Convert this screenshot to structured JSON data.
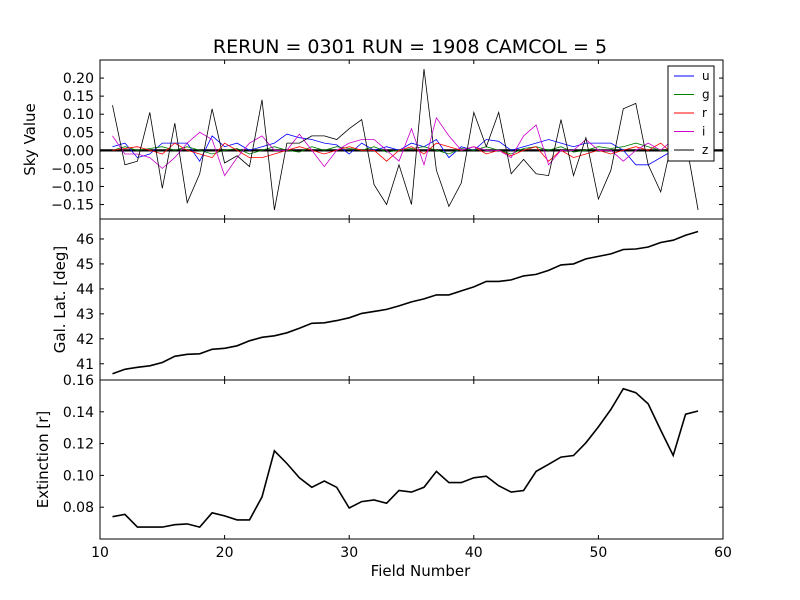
{
  "figure_title": "RERUN = 0301 RUN = 1908 CAMCOL = 5",
  "chart_data": [
    {
      "type": "line",
      "title": "RERUN = 0301 RUN = 1908 CAMCOL = 5",
      "xlabel": "",
      "ylabel": "Sky Value",
      "xlim": [
        10,
        60
      ],
      "ylim": [
        -0.19,
        0.25
      ],
      "yticks": [
        "0.20",
        "0.15",
        "0.10",
        "0.05",
        "0.00",
        "−0.05",
        "−0.10",
        "−0.15"
      ],
      "ytick_values": [
        0.2,
        0.15,
        0.1,
        0.05,
        0.0,
        -0.05,
        -0.1,
        -0.15
      ],
      "legend": {
        "placement": "top-right",
        "entries": [
          "u",
          "g",
          "r",
          "i",
          "z"
        ]
      },
      "x": [
        11,
        12,
        13,
        14,
        15,
        16,
        17,
        18,
        19,
        20,
        21,
        22,
        23,
        24,
        25,
        26,
        27,
        28,
        29,
        30,
        31,
        32,
        33,
        34,
        35,
        36,
        37,
        38,
        39,
        40,
        41,
        42,
        43,
        44,
        45,
        46,
        47,
        48,
        49,
        50,
        51,
        52,
        53,
        54,
        55,
        56,
        57,
        58
      ],
      "series": [
        {
          "name": "u",
          "color": "#0000ff",
          "values": [
            0.01,
            0.02,
            -0.02,
            -0.01,
            0.02,
            0.02,
            0.02,
            -0.03,
            0.04,
            0.01,
            0.02,
            0.0,
            0.01,
            0.02,
            0.045,
            0.035,
            0.03,
            0.02,
            0.015,
            -0.01,
            0.02,
            0.0,
            0.01,
            0.0,
            0.02,
            0.01,
            0.03,
            -0.02,
            0.01,
            0.0,
            0.03,
            0.025,
            0.0,
            0.01,
            0.02,
            0.03,
            0.02,
            0.01,
            0.02,
            0.02,
            0.02,
            0.0,
            -0.04,
            -0.04,
            -0.02,
            0.0,
            0.01,
            -0.01
          ]
        },
        {
          "name": "g",
          "color": "#008000",
          "values": [
            0.0,
            0.01,
            0.0,
            0.005,
            0.01,
            0.0,
            0.01,
            0.0,
            -0.01,
            0.0,
            0.005,
            -0.01,
            0.0,
            0.01,
            0.0,
            -0.005,
            0.01,
            0.0,
            0.01,
            0.005,
            0.0,
            0.01,
            -0.005,
            0.0,
            0.005,
            0.01,
            0.0,
            -0.01,
            0.005,
            0.0,
            0.01,
            0.0,
            -0.01,
            0.005,
            0.01,
            0.0,
            0.01,
            -0.005,
            0.0,
            0.01,
            0.005,
            0.01,
            0.02,
            0.01,
            0.0,
            -0.005,
            0.01,
            0.0
          ]
        },
        {
          "name": "r",
          "color": "#ff0000",
          "values": [
            0.0,
            0.005,
            0.01,
            0.0,
            -0.01,
            0.02,
            0.0,
            -0.01,
            -0.02,
            0.02,
            0.0,
            -0.02,
            -0.02,
            -0.01,
            0.0,
            0.01,
            0.0,
            -0.01,
            0.0,
            0.01,
            0.0,
            0.0,
            -0.03,
            0.0,
            0.01,
            -0.01,
            0.02,
            0.01,
            0.0,
            0.01,
            -0.01,
            0.0,
            -0.015,
            0.0,
            0.01,
            -0.03,
            0.0,
            -0.02,
            -0.01,
            0.0,
            -0.01,
            0.0,
            0.01,
            0.0,
            0.02,
            -0.01,
            0.0,
            0.0
          ]
        },
        {
          "name": "i",
          "color": "#cc00cc",
          "values": [
            0.04,
            -0.01,
            -0.01,
            -0.02,
            -0.05,
            -0.02,
            0.02,
            0.05,
            0.03,
            -0.07,
            -0.02,
            0.02,
            0.04,
            0.0,
            0.0,
            0.045,
            0.0,
            -0.045,
            0.0,
            0.02,
            0.03,
            0.03,
            0.0,
            -0.03,
            0.06,
            -0.04,
            0.09,
            0.04,
            0.0,
            0.01,
            0.0,
            0.0,
            -0.02,
            0.04,
            0.07,
            -0.04,
            0.0,
            0.0,
            0.03,
            0.0,
            0.0,
            -0.03,
            0.0,
            0.02,
            0.0,
            0.03,
            0.01,
            0.03
          ]
        },
        {
          "name": "z",
          "color": "#000000",
          "values": [
            0.125,
            -0.04,
            -0.03,
            0.105,
            -0.105,
            0.075,
            -0.145,
            -0.065,
            0.115,
            -0.035,
            -0.015,
            -0.045,
            0.14,
            -0.165,
            0.02,
            0.02,
            0.04,
            0.04,
            0.03,
            0.06,
            0.085,
            -0.095,
            -0.15,
            -0.04,
            -0.15,
            0.225,
            -0.055,
            -0.155,
            -0.09,
            0.105,
            0.01,
            0.105,
            -0.065,
            -0.025,
            -0.065,
            -0.07,
            0.085,
            -0.07,
            0.035,
            -0.135,
            -0.055,
            0.115,
            0.13,
            -0.04,
            -0.115,
            0.04,
            0.03,
            -0.165
          ]
        }
      ]
    },
    {
      "type": "line",
      "title": "",
      "xlabel": "",
      "ylabel": "Gal. Lat. [deg]",
      "xlim": [
        10,
        60
      ],
      "ylim": [
        40.35,
        46.8
      ],
      "yticks": [
        "46",
        "45",
        "44",
        "43",
        "42",
        "41"
      ],
      "ytick_values": [
        46,
        45,
        44,
        43,
        42,
        41
      ],
      "x": [
        11,
        12,
        13,
        14,
        15,
        16,
        17,
        18,
        19,
        20,
        21,
        22,
        23,
        24,
        25,
        26,
        27,
        28,
        29,
        30,
        31,
        32,
        33,
        34,
        35,
        36,
        37,
        38,
        39,
        40,
        41,
        42,
        43,
        44,
        45,
        46,
        47,
        48,
        49,
        50,
        51,
        52,
        53,
        54,
        55,
        56,
        57,
        58
      ],
      "series": [
        {
          "name": "Gal. Lat.",
          "color": "#000000",
          "values": [
            40.6,
            40.78,
            40.86,
            40.92,
            41.05,
            41.3,
            41.38,
            41.4,
            41.58,
            41.62,
            41.72,
            41.92,
            42.06,
            42.12,
            42.24,
            42.42,
            42.62,
            42.64,
            42.73,
            42.84,
            43.02,
            43.1,
            43.18,
            43.32,
            43.48,
            43.6,
            43.76,
            43.76,
            43.92,
            44.08,
            44.3,
            44.3,
            44.36,
            44.52,
            44.58,
            44.74,
            44.96,
            45.0,
            45.2,
            45.3,
            45.4,
            45.58,
            45.6,
            45.68,
            45.86,
            45.95,
            46.15,
            46.3
          ]
        }
      ]
    },
    {
      "type": "line",
      "title": "",
      "xlabel": "Field Number",
      "ylabel": "Extinction [r]",
      "xlim": [
        10,
        60
      ],
      "xticks": [
        "10",
        "20",
        "30",
        "40",
        "50",
        "60"
      ],
      "xtick_values": [
        10,
        20,
        30,
        40,
        50,
        60
      ],
      "ylim": [
        0.06,
        0.16
      ],
      "yticks": [
        "0.16",
        "0.14",
        "0.12",
        "0.10",
        "0.08"
      ],
      "ytick_values": [
        0.16,
        0.14,
        0.12,
        0.1,
        0.08
      ],
      "x": [
        11,
        12,
        13,
        14,
        15,
        16,
        17,
        18,
        19,
        20,
        21,
        22,
        23,
        24,
        25,
        26,
        27,
        28,
        29,
        30,
        31,
        32,
        33,
        34,
        35,
        36,
        37,
        38,
        39,
        40,
        41,
        42,
        43,
        44,
        45,
        46,
        47,
        48,
        49,
        50,
        51,
        52,
        53,
        54,
        55,
        56,
        57,
        58
      ],
      "series": [
        {
          "name": "Extinction",
          "color": "#000000",
          "values": [
            0.074,
            0.0755,
            0.0675,
            0.0675,
            0.0675,
            0.069,
            0.0695,
            0.0675,
            0.0765,
            0.0745,
            0.072,
            0.072,
            0.0865,
            0.1155,
            0.1075,
            0.0985,
            0.0925,
            0.0965,
            0.0925,
            0.0795,
            0.0835,
            0.0845,
            0.0825,
            0.0905,
            0.0895,
            0.0925,
            0.1025,
            0.0955,
            0.0955,
            0.0985,
            0.0995,
            0.0935,
            0.0895,
            0.0905,
            0.1025,
            0.107,
            0.1115,
            0.1125,
            0.1205,
            0.1305,
            0.1415,
            0.1545,
            0.152,
            0.145,
            0.1285,
            0.1125,
            0.1385,
            0.1405
          ]
        }
      ]
    }
  ]
}
